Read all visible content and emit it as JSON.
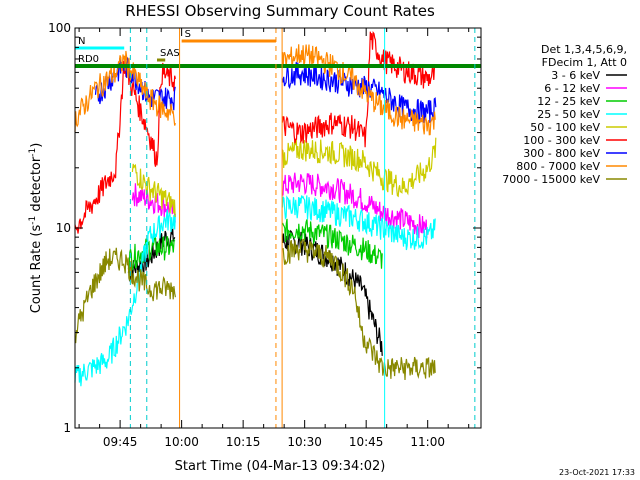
{
  "chart_data": {
    "type": "line",
    "title": "RHESSI Observing Summary Count Rates",
    "xlabel": "Start Time (04-Mar-13 09:34:02)",
    "ylabel_main": "Count Rate (s",
    "ylabel_sup": "-1",
    "ylabel_mid": " detector",
    "ylabel_end": ")",
    "y_scale": "log",
    "ylim": [
      1,
      100
    ],
    "y_ticks": [
      "1",
      "10",
      "100"
    ],
    "x_range_minutes": [
      0,
      99
    ],
    "x_ticks": [
      {
        "label": "09:45",
        "min": 11
      },
      {
        "label": "10:00",
        "min": 26
      },
      {
        "label": "10:15",
        "min": 41
      },
      {
        "label": "10:30",
        "min": 56
      },
      {
        "label": "10:45",
        "min": 71
      },
      {
        "label": "11:00",
        "min": 86
      }
    ],
    "legend_header": [
      "Det 1,3,4,5,6,9,",
      "FDecim 1, Att 0"
    ],
    "legend_position": "right",
    "series": [
      {
        "name": "3 - 6 keV",
        "color": "#000000",
        "points": [
          [
            13,
            6
          ],
          [
            18,
            7
          ],
          [
            22,
            9
          ],
          [
            24,
            9
          ],
          [
            55,
            8.5
          ],
          [
            63,
            7
          ],
          [
            70,
            5
          ],
          [
            75,
            2.5
          ]
        ]
      },
      {
        "name": "6 - 12 keV",
        "color": "#ff00ff",
        "points": [
          [
            14,
            15
          ],
          [
            18,
            14
          ],
          [
            22,
            13
          ],
          [
            24,
            12
          ],
          [
            55,
            17
          ],
          [
            63,
            16
          ],
          [
            70,
            14
          ],
          [
            75,
            12
          ],
          [
            80,
            11
          ],
          [
            86,
            10
          ]
        ]
      },
      {
        "name": "12 - 25 keV",
        "color": "#00cc00",
        "points": [
          [
            13,
            7
          ],
          [
            18,
            8
          ],
          [
            22,
            8
          ],
          [
            24,
            8
          ],
          [
            55,
            10
          ],
          [
            63,
            9
          ],
          [
            70,
            8
          ],
          [
            75,
            7
          ]
        ]
      },
      {
        "name": "25 - 50 keV",
        "color": "#00ffff",
        "points": [
          [
            0,
            1.8
          ],
          [
            8,
            2.2
          ],
          [
            13,
            3.5
          ],
          [
            18,
            9
          ],
          [
            22,
            11
          ],
          [
            24,
            11
          ],
          [
            55,
            13
          ],
          [
            63,
            12
          ],
          [
            70,
            11
          ],
          [
            75,
            10
          ],
          [
            80,
            9
          ],
          [
            86,
            9
          ],
          [
            88,
            10
          ]
        ]
      },
      {
        "name": "50 - 100 keV",
        "color": "#cccc00",
        "points": [
          [
            14,
            20
          ],
          [
            18,
            16
          ],
          [
            22,
            14
          ],
          [
            24,
            13
          ],
          [
            55,
            25
          ],
          [
            63,
            24
          ],
          [
            70,
            22
          ],
          [
            75,
            18
          ],
          [
            80,
            16
          ],
          [
            86,
            20
          ],
          [
            88,
            25
          ]
        ]
      },
      {
        "name": "100 - 300 keV",
        "color": "#ff0000",
        "points": [
          [
            0,
            10
          ],
          [
            5,
            14
          ],
          [
            10,
            20
          ],
          [
            12,
            68
          ],
          [
            14,
            50
          ],
          [
            18,
            30
          ],
          [
            20,
            22
          ],
          [
            21,
            60
          ],
          [
            24,
            55
          ],
          [
            55,
            30
          ],
          [
            63,
            34
          ],
          [
            68,
            32
          ],
          [
            71,
            28
          ],
          [
            72,
            90
          ],
          [
            75,
            70
          ],
          [
            80,
            62
          ],
          [
            86,
            56
          ],
          [
            88,
            58
          ]
        ]
      },
      {
        "name": "300 - 800 keV",
        "color": "#0000ff",
        "points": [
          [
            5,
            45
          ],
          [
            10,
            60
          ],
          [
            12,
            65
          ],
          [
            14,
            60
          ],
          [
            18,
            45
          ],
          [
            21,
            45
          ],
          [
            24,
            45
          ],
          [
            55,
            60
          ],
          [
            63,
            55
          ],
          [
            68,
            52
          ],
          [
            72,
            50
          ],
          [
            75,
            47
          ],
          [
            80,
            40
          ],
          [
            86,
            38
          ],
          [
            88,
            40
          ]
        ]
      },
      {
        "name": "800 - 7000 keV",
        "color": "#ff8800",
        "points": [
          [
            0,
            35
          ],
          [
            5,
            50
          ],
          [
            10,
            60
          ],
          [
            12,
            70
          ],
          [
            14,
            60
          ],
          [
            18,
            45
          ],
          [
            21,
            40
          ],
          [
            24,
            37
          ],
          [
            55,
            75
          ],
          [
            58,
            72
          ],
          [
            63,
            65
          ],
          [
            68,
            55
          ],
          [
            72,
            45
          ],
          [
            75,
            40
          ],
          [
            80,
            35
          ],
          [
            86,
            33
          ],
          [
            88,
            35
          ]
        ]
      },
      {
        "name": "7000 - 15000 keV",
        "color": "#888800",
        "points": [
          [
            0,
            3
          ],
          [
            4,
            5
          ],
          [
            8,
            7
          ],
          [
            12,
            7
          ],
          [
            14,
            6
          ],
          [
            18,
            5
          ],
          [
            22,
            5
          ],
          [
            24,
            5
          ],
          [
            55,
            8
          ],
          [
            63,
            7
          ],
          [
            68,
            5
          ],
          [
            70,
            3
          ],
          [
            72,
            2.5
          ],
          [
            75,
            2
          ],
          [
            80,
            2
          ],
          [
            86,
            2
          ],
          [
            88,
            2
          ]
        ]
      }
    ],
    "flags": [
      {
        "label": "N",
        "color": "#00ffff",
        "x0": 0,
        "x1": 12
      },
      {
        "label": "RD0",
        "color": "#008800",
        "x0": 0,
        "x1": 100
      },
      {
        "label": "S",
        "color": "#ff8800",
        "x0": 26,
        "x1": 49
      },
      {
        "label": "SAS",
        "color": "#888800",
        "x0": 20,
        "x1": 22
      }
    ],
    "vertical_markers": [
      {
        "min": 13.5,
        "color": "#00cccc",
        "style": "dashed"
      },
      {
        "min": 17.5,
        "color": "#00cccc",
        "style": "dashed"
      },
      {
        "min": 25.5,
        "color": "#ff8800",
        "style": "solid"
      },
      {
        "min": 49.0,
        "color": "#ff8800",
        "style": "dashed"
      },
      {
        "min": 50.5,
        "color": "#ff8800",
        "style": "solid"
      },
      {
        "min": 75.5,
        "color": "#00ffff",
        "style": "solid"
      },
      {
        "min": 97.5,
        "color": "#00cccc",
        "style": "dashed"
      }
    ],
    "gaps": [
      [
        24.5,
        50.5
      ]
    ]
  },
  "timestamp": "23-Oct-2021 17:33"
}
